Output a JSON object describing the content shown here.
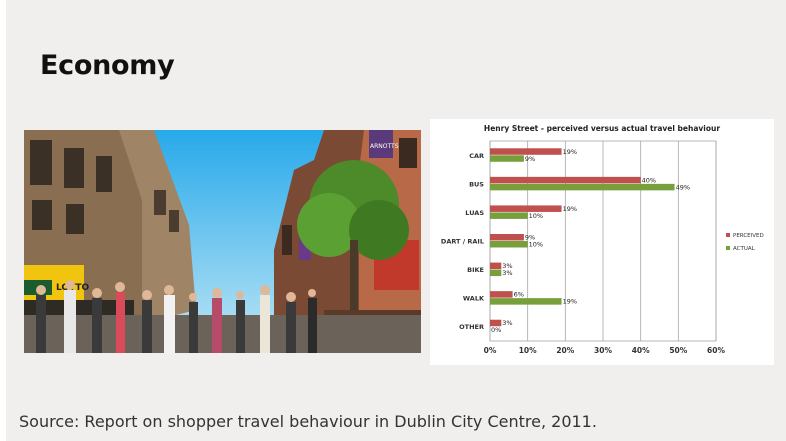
{
  "slide": {
    "title": "Economy",
    "source": "Source: Report on shopper travel behaviour in Dublin City Centre, 2011."
  },
  "photo": {
    "shop_sign_left": "LOTTO",
    "shop_sign_right": "ARNOTTS"
  },
  "colors": {
    "perceived": "#c0504d",
    "actual": "#77a03c",
    "background": "#f0efed"
  },
  "chart_data": {
    "type": "bar",
    "orientation": "horizontal",
    "title": "Henry Street - perceived versus actual travel behaviour",
    "categories": [
      "Car",
      "Bus",
      "Luas",
      "Dart / Rail",
      "Bike",
      "Walk",
      "Other"
    ],
    "series": [
      {
        "name": "Perceived",
        "values": [
          19,
          40,
          19,
          9,
          3,
          6,
          3
        ],
        "labels": [
          "19%",
          "40%",
          "19%",
          "9%",
          "3%",
          "6%",
          "3%"
        ]
      },
      {
        "name": "Actual",
        "values": [
          9,
          49,
          10,
          10,
          3,
          19,
          0
        ],
        "labels": [
          "9%",
          "49%",
          "10%",
          "10%",
          "3%",
          "19%",
          "0%"
        ]
      }
    ],
    "xlim": [
      0,
      60
    ],
    "xticks": [
      "0%",
      "10%",
      "20%",
      "30%",
      "40%",
      "50%",
      "60%"
    ],
    "xlabel": "",
    "ylabel": "",
    "grid": true,
    "legend": "right"
  }
}
